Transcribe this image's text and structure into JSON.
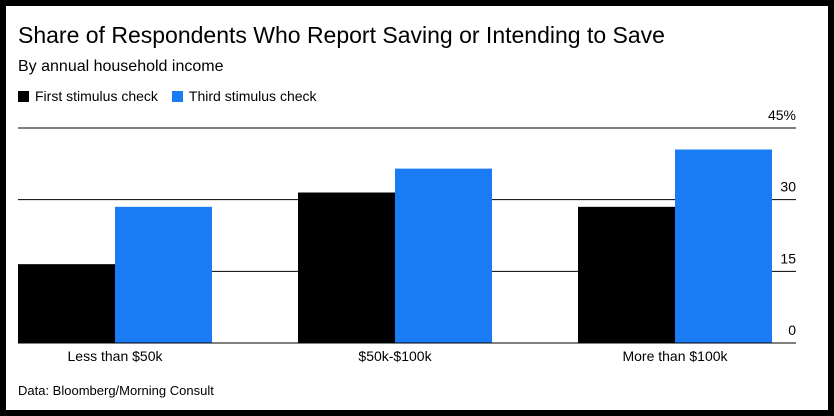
{
  "title": "Share of Respondents Who Report Saving or Intending to Save",
  "subtitle": "By annual household income",
  "source": "Data: Bloomberg/Morning Consult",
  "colors": {
    "first": "#000000",
    "third": "#1a7cf5"
  },
  "chart_data": {
    "type": "bar",
    "title": "Share of Respondents Who Report Saving or Intending to Save",
    "subtitle": "By annual household income",
    "categories": [
      "Less than $50k",
      "$50k-$100k",
      "More than $100k"
    ],
    "series": [
      {
        "name": "First stimulus check",
        "values": [
          16.5,
          31.5,
          28.5
        ]
      },
      {
        "name": "Third stimulus check",
        "values": [
          28.5,
          36.5,
          40.5
        ]
      }
    ],
    "yticks": [
      0,
      15,
      30,
      45
    ],
    "ytick_labels": [
      "0",
      "15",
      "30",
      "45%"
    ],
    "ylim": [
      0,
      45
    ],
    "grid": true,
    "legend": "top-left",
    "axis_side": "right"
  }
}
